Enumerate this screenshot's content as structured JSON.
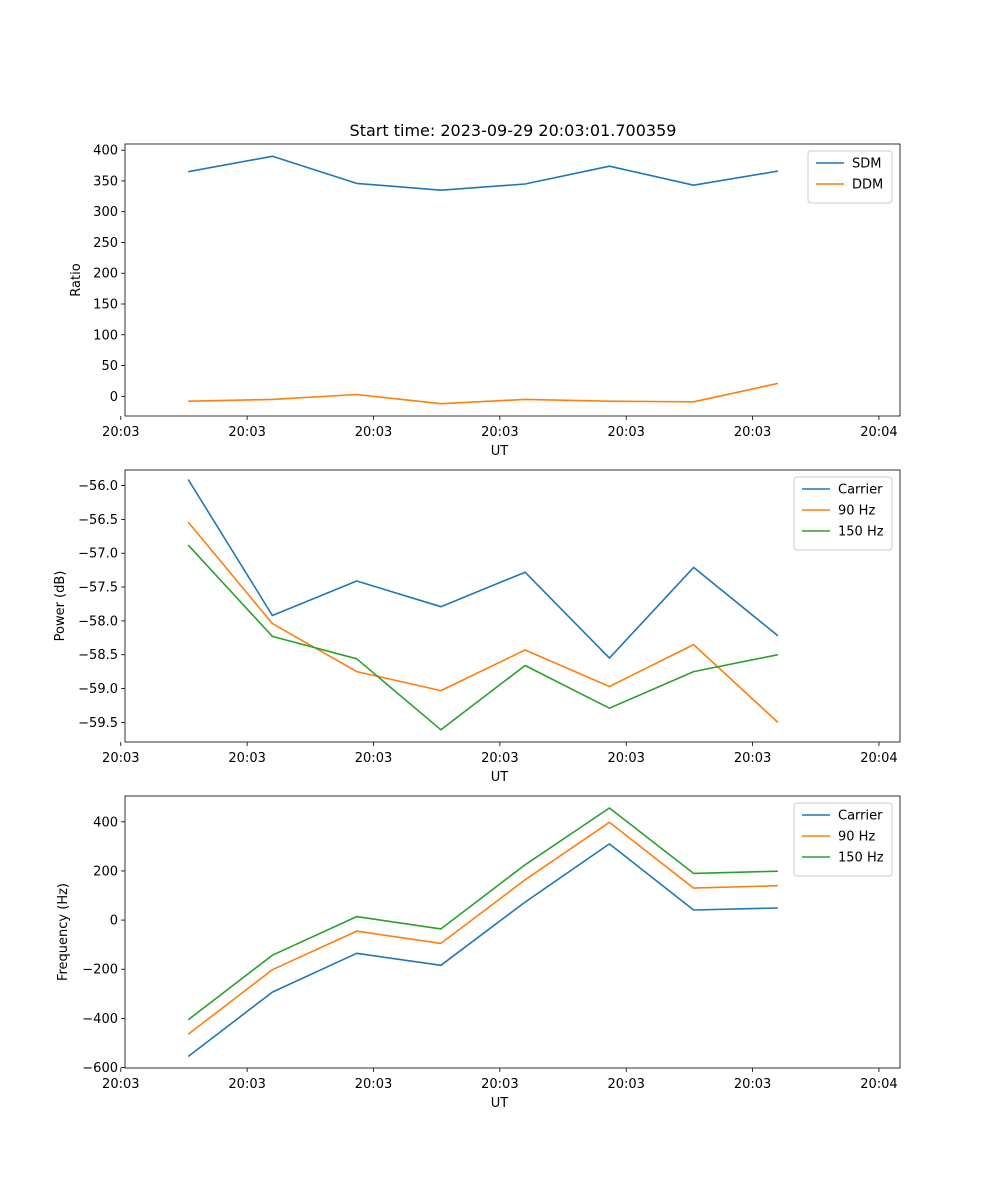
{
  "title": "Start time: 2023-09-29 20:03:01.700359",
  "colors": {
    "blue": "#1f77b4",
    "orange": "#ff7f0e",
    "green": "#2ca02c"
  },
  "chart_data": [
    {
      "type": "line",
      "title": "Start time: 2023-09-29 20:03:01.700359",
      "xlabel": "UT",
      "ylabel": "Ratio",
      "x": [
        1.0,
        2.0,
        3.0,
        4.0,
        5.0,
        6.0,
        7.0,
        8.0
      ],
      "xlim": [
        0.25,
        9.45
      ],
      "xticks": [
        0.2,
        1.7,
        3.2,
        4.7,
        6.2,
        7.7,
        9.2
      ],
      "xticklabels": [
        "20:03",
        "20:03",
        "20:03",
        "20:03",
        "20:03",
        "20:03",
        "20:04"
      ],
      "ylim": [
        -32,
        410
      ],
      "yticks": [
        0,
        50,
        100,
        150,
        200,
        250,
        300,
        350,
        400
      ],
      "yticklabels": [
        "0",
        "50",
        "100",
        "150",
        "200",
        "250",
        "300",
        "350",
        "400"
      ],
      "legend": "upper right",
      "series": [
        {
          "name": "SDM",
          "color": "#1f77b4",
          "values": [
            365,
            390,
            346,
            335,
            345,
            374,
            343,
            366
          ]
        },
        {
          "name": "DDM",
          "color": "#ff7f0e",
          "values": [
            -8,
            -5,
            3,
            -12,
            -5,
            -8,
            -9,
            21
          ]
        }
      ]
    },
    {
      "type": "line",
      "xlabel": "UT",
      "ylabel": "Power (dB)",
      "x": [
        1.0,
        2.0,
        3.0,
        4.0,
        5.0,
        6.0,
        7.0,
        8.0
      ],
      "xlim": [
        0.25,
        9.45
      ],
      "xticks": [
        0.2,
        1.7,
        3.2,
        4.7,
        6.2,
        7.7,
        9.2
      ],
      "xticklabels": [
        "20:03",
        "20:03",
        "20:03",
        "20:03",
        "20:03",
        "20:03",
        "20:04"
      ],
      "ylim": [
        -59.79,
        -55.77
      ],
      "yticks": [
        -59.5,
        -59.0,
        -58.5,
        -58.0,
        -57.5,
        -57.0,
        -56.5,
        -56.0
      ],
      "yticklabels": [
        "−59.5",
        "−59.0",
        "−58.5",
        "−58.0",
        "−57.5",
        "−57.0",
        "−56.5",
        "−56.0"
      ],
      "legend": "upper right",
      "series": [
        {
          "name": "Carrier",
          "color": "#1f77b4",
          "values": [
            -55.91,
            -57.92,
            -57.41,
            -57.79,
            -57.28,
            -58.55,
            -57.21,
            -58.22
          ]
        },
        {
          "name": "90 Hz",
          "color": "#ff7f0e",
          "values": [
            -56.54,
            -58.04,
            -58.75,
            -59.03,
            -58.43,
            -58.97,
            -58.35,
            -59.5
          ]
        },
        {
          "name": "150 Hz",
          "color": "#2ca02c",
          "values": [
            -56.88,
            -58.23,
            -58.56,
            -59.61,
            -58.66,
            -59.29,
            -58.75,
            -58.5
          ]
        }
      ]
    },
    {
      "type": "line",
      "xlabel": "UT",
      "ylabel": "Frequency (Hz)",
      "x": [
        1.0,
        2.0,
        3.0,
        4.0,
        5.0,
        6.0,
        7.0,
        8.0
      ],
      "xlim": [
        0.25,
        9.45
      ],
      "xticks": [
        0.2,
        1.7,
        3.2,
        4.7,
        6.2,
        7.7,
        9.2
      ],
      "xticklabels": [
        "20:03",
        "20:03",
        "20:03",
        "20:03",
        "20:03",
        "20:03",
        "20:04"
      ],
      "ylim": [
        -602,
        505
      ],
      "yticks": [
        -600,
        -400,
        -200,
        0,
        200,
        400
      ],
      "yticklabels": [
        "−600",
        "−400",
        "−200",
        "0",
        "200",
        "400"
      ],
      "legend": "upper right",
      "series": [
        {
          "name": "Carrier",
          "color": "#1f77b4",
          "values": [
            -555,
            -293,
            -135,
            -184,
            73,
            310,
            41,
            49
          ]
        },
        {
          "name": "90 Hz",
          "color": "#ff7f0e",
          "values": [
            -465,
            -202,
            -45,
            -95,
            164,
            398,
            130,
            140
          ]
        },
        {
          "name": "150 Hz",
          "color": "#2ca02c",
          "values": [
            -406,
            -143,
            14,
            -36,
            225,
            456,
            190,
            199
          ]
        }
      ]
    }
  ]
}
